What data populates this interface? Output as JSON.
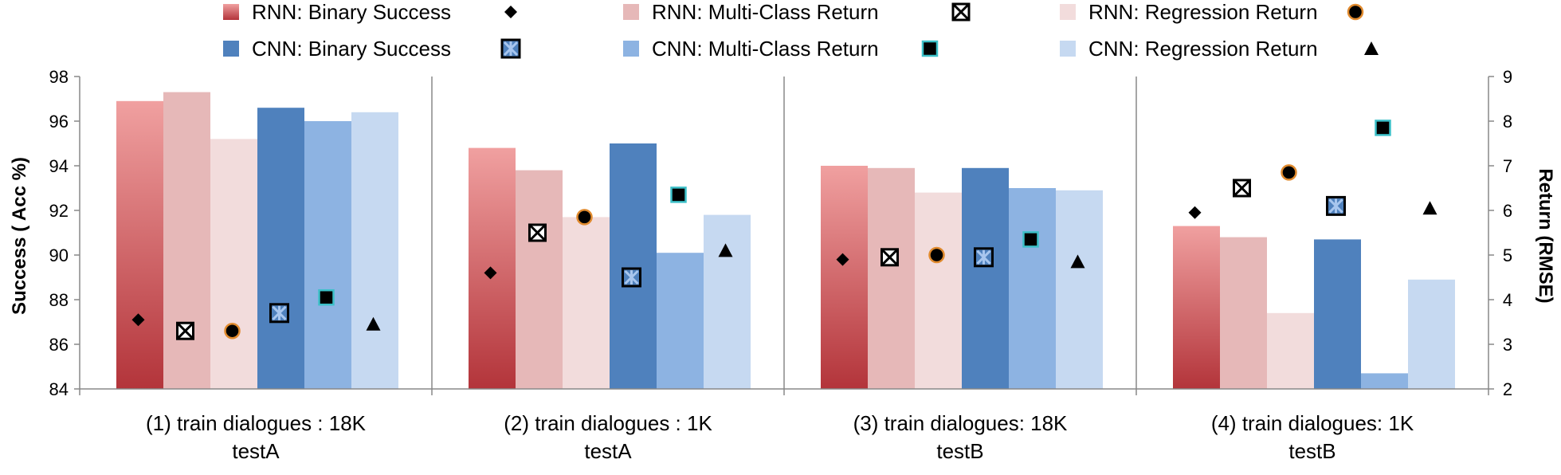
{
  "chart_data": {
    "type": "bar",
    "categories": [
      [
        "(1) train dialogues : 18K",
        "testA"
      ],
      [
        "(2) train dialogues : 1K",
        "testA"
      ],
      [
        "(3) train dialogues: 18K",
        "testB"
      ],
      [
        "(4) train dialogues: 1K",
        "testB"
      ]
    ],
    "ylabel": "Success ( Acc %)",
    "y2label": "Return (RMSE)",
    "ylim": [
      84,
      98
    ],
    "y2lim": [
      2,
      9
    ],
    "yticks": [
      "84",
      "86",
      "88",
      "90",
      "92",
      "94",
      "96",
      "98"
    ],
    "y2ticks": [
      "2",
      "3",
      "4",
      "5",
      "6",
      "7",
      "8",
      "9"
    ],
    "grid": false,
    "legend_position": "top",
    "bar_series": [
      {
        "name": "RNN: Binary Success",
        "values": [
          96.9,
          94.8,
          94.0,
          91.3
        ],
        "color_top": "#f0a0a0",
        "color_bottom": "#b3343a"
      },
      {
        "name": "RNN: Multi-Class Return",
        "values": [
          97.3,
          93.8,
          93.9,
          90.8
        ],
        "color": "#e6b8b8"
      },
      {
        "name": "RNN: Regression Return",
        "values": [
          95.2,
          91.7,
          92.8,
          87.4
        ],
        "color": "#f2dcdc"
      },
      {
        "name": "CNN: Binary Success",
        "values": [
          96.6,
          95.0,
          93.9,
          90.7
        ],
        "color": "#4f81bd"
      },
      {
        "name": "CNN: Multi-Class Return",
        "values": [
          96.0,
          90.1,
          93.0,
          84.7
        ],
        "color": "#8db3e2"
      },
      {
        "name": "CNN: Regression Return",
        "values": [
          96.4,
          91.8,
          92.9,
          88.9
        ],
        "color": "#c6d9f1"
      }
    ],
    "marker_series": [
      {
        "name": "RNN: Binary Success",
        "marker": "diamond-icon",
        "values": [
          3.55,
          4.6,
          4.9,
          5.95
        ]
      },
      {
        "name": "RNN: Multi-Class Return",
        "marker": "box-x-icon",
        "values": [
          3.3,
          5.5,
          4.95,
          6.5
        ]
      },
      {
        "name": "RNN: Regression Return",
        "marker": "circle-icon",
        "values": [
          3.3,
          5.85,
          5.0,
          6.85
        ]
      },
      {
        "name": "CNN: Binary Success",
        "marker": "box-star-icon",
        "values": [
          3.7,
          4.5,
          4.95,
          6.1
        ]
      },
      {
        "name": "CNN: Multi-Class Return",
        "marker": "square-icon",
        "values": [
          4.05,
          6.35,
          5.35,
          7.85
        ]
      },
      {
        "name": "CNN: Regression Return",
        "marker": "triangle-icon",
        "values": [
          3.45,
          5.1,
          4.85,
          6.05
        ]
      }
    ]
  }
}
